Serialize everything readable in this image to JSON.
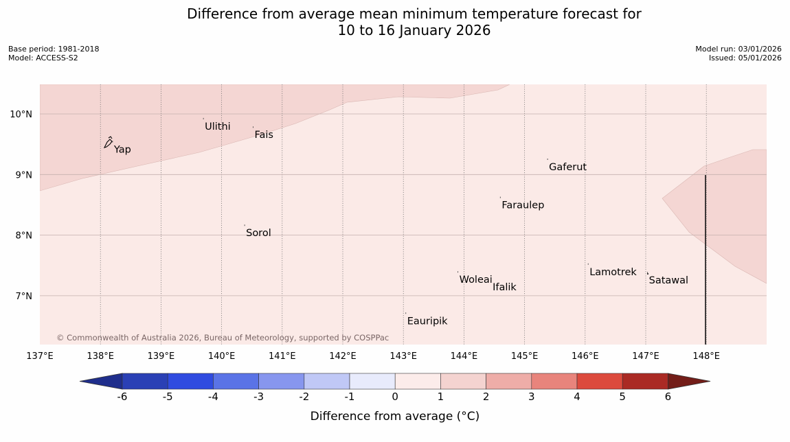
{
  "title": {
    "line1": "Difference from average mean minimum temperature forecast for",
    "line2": "10 to 16 January 2026"
  },
  "meta": {
    "base_period": "Base period: 1981-2018",
    "model": "Model: ACCESS-S2",
    "model_run": "Model run: 03/01/2026",
    "issued": "Issued: 05/01/2026"
  },
  "map": {
    "lon_range": [
      137,
      149
    ],
    "lat_range": [
      6.2,
      10.5
    ],
    "lon_ticks": [
      "137°E",
      "138°E",
      "139°E",
      "140°E",
      "141°E",
      "142°E",
      "143°E",
      "144°E",
      "145°E",
      "146°E",
      "147°E",
      "148°E"
    ],
    "lat_ticks": [
      "10°N",
      "9°N",
      "8°N",
      "7°N"
    ],
    "places": [
      {
        "name": "Yap",
        "lon": 138.2,
        "lat": 9.52
      },
      {
        "name": "Ulithi",
        "lon": 139.7,
        "lat": 9.9
      },
      {
        "name": "Fais",
        "lon": 140.52,
        "lat": 9.76
      },
      {
        "name": "Gaferut",
        "lon": 145.38,
        "lat": 9.23
      },
      {
        "name": "Faraulep",
        "lon": 144.6,
        "lat": 8.6
      },
      {
        "name": "Sorol",
        "lon": 140.38,
        "lat": 8.14
      },
      {
        "name": "Lamotrek",
        "lon": 146.05,
        "lat": 7.5
      },
      {
        "name": "Satawal",
        "lon": 147.03,
        "lat": 7.36
      },
      {
        "name": "Woleai",
        "lon": 143.9,
        "lat": 7.37
      },
      {
        "name": "Ifalik",
        "lon": 144.45,
        "lat": 7.25
      },
      {
        "name": "Eauripik",
        "lon": 143.04,
        "lat": 6.69
      }
    ],
    "copyright": "© Commonwealth of Australia 2026, Bureau of Meteorology, supported by COSPPac"
  },
  "colorbar": {
    "title": "Difference from average (°C)",
    "ticks": [
      "-6",
      "-5",
      "-4",
      "-3",
      "-2",
      "-1",
      "0",
      "1",
      "2",
      "3",
      "4",
      "5",
      "6"
    ],
    "colors": [
      "#1f2e8c",
      "#2a40b5",
      "#2f4be0",
      "#5a73e6",
      "#8796ee",
      "#c0c8f6",
      "#e8ebfc",
      "#fcecea",
      "#f4d3d0",
      "#eeada8",
      "#e8847c",
      "#dc4a3d",
      "#aa2a24",
      "#731d18"
    ],
    "map_fill_light": "#fbeae7",
    "map_fill_mid": "#f4d6d3"
  }
}
